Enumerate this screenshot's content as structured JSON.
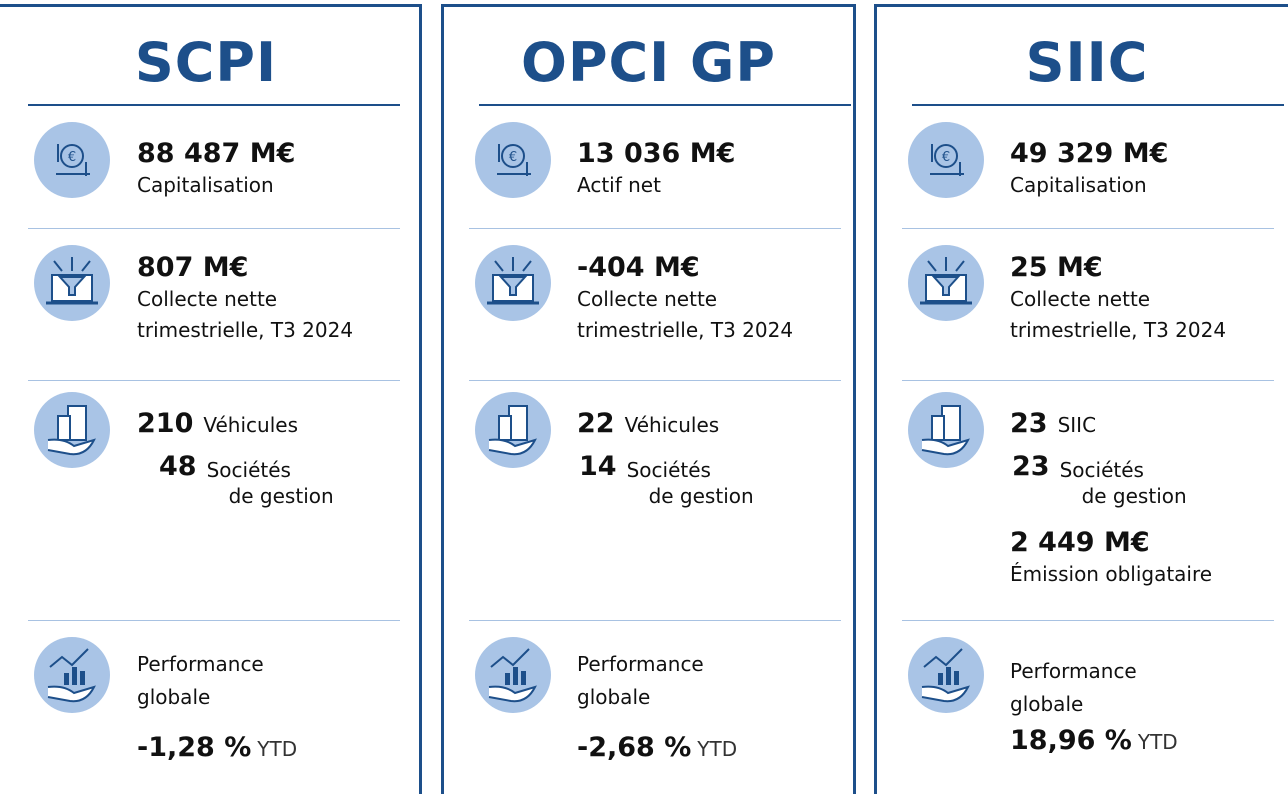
{
  "columns": [
    {
      "title": "SCPI",
      "sections": [
        {
          "value": "88 487 M€",
          "label": [
            "Capitalisation"
          ]
        },
        {
          "value": "807 M€",
          "label": [
            "Collecte nette",
            "trimestrielle, T3 2024"
          ]
        },
        {
          "items": [
            {
              "number": "210",
              "label": [
                "Véhicules"
              ]
            },
            {
              "number": "48",
              "label": [
                "Sociétés",
                "de gestion"
              ]
            }
          ]
        },
        {
          "label": [
            "Performance",
            "globale"
          ],
          "value": "-1,28 %",
          "unit": "YTD"
        }
      ]
    },
    {
      "title": "OPCI GP",
      "sections": [
        {
          "value": "13 036 M€",
          "label": [
            "Actif net"
          ]
        },
        {
          "value": "-404 M€",
          "label": [
            "Collecte nette",
            "trimestrielle, T3 2024"
          ]
        },
        {
          "items": [
            {
              "number": "22",
              "label": [
                "Véhicules"
              ]
            },
            {
              "number": "14",
              "label": [
                "Sociétés",
                "de gestion"
              ]
            }
          ]
        },
        {
          "label": [
            "Performance",
            "globale"
          ],
          "value": "-2,68 %",
          "unit": "YTD"
        }
      ]
    },
    {
      "title": "SIIC",
      "sections": [
        {
          "value": "49 329 M€",
          "label": [
            "Capitalisation"
          ]
        },
        {
          "value": "25 M€",
          "label": [
            "Collecte nette",
            "trimestrielle, T3 2024"
          ]
        },
        {
          "items": [
            {
              "number": "23",
              "label": [
                "SIIC"
              ]
            },
            {
              "number": "23",
              "label": [
                "Sociétés",
                "de gestion"
              ]
            }
          ],
          "extra": {
            "value": "2 449 M€",
            "label": [
              "Émission obligataire"
            ]
          }
        },
        {
          "label": [
            "Performance",
            "globale"
          ],
          "value": "18,96 %",
          "unit": "YTD"
        }
      ]
    }
  ]
}
